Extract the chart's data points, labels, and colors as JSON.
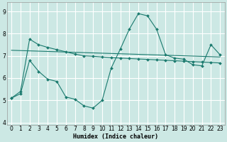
{
  "xlabel": "Humidex (Indice chaleur)",
  "bg_color": "#cce8e4",
  "line_color": "#1a7a6e",
  "grid_color": "#ffffff",
  "xlim": [
    -0.5,
    23.5
  ],
  "ylim": [
    3.9,
    9.4
  ],
  "yticks": [
    4,
    5,
    6,
    7,
    8,
    9
  ],
  "xticks": [
    0,
    1,
    2,
    3,
    4,
    5,
    6,
    7,
    8,
    9,
    10,
    11,
    12,
    13,
    14,
    15,
    16,
    17,
    18,
    19,
    20,
    21,
    22,
    23
  ],
  "line1_x": [
    0,
    1,
    2,
    3,
    4,
    5,
    6,
    7,
    8,
    9,
    10,
    11,
    12,
    13,
    14,
    15,
    16,
    17,
    18,
    19,
    20,
    21,
    22,
    23
  ],
  "line1_y": [
    5.1,
    5.4,
    7.75,
    7.5,
    7.38,
    7.28,
    7.18,
    7.08,
    7.0,
    6.98,
    6.95,
    6.92,
    6.9,
    6.88,
    6.86,
    6.84,
    6.82,
    6.8,
    6.78,
    6.76,
    6.74,
    6.72,
    6.7,
    6.68
  ],
  "line2_x": [
    0,
    1,
    2,
    3,
    4,
    5,
    6,
    7,
    8,
    9,
    10,
    11,
    12,
    13,
    14,
    15,
    16,
    17,
    18,
    19,
    20,
    21,
    22,
    23
  ],
  "line2_y": [
    5.1,
    5.3,
    6.8,
    6.3,
    5.95,
    5.85,
    5.15,
    5.05,
    4.75,
    4.65,
    5.0,
    6.45,
    7.3,
    8.2,
    8.9,
    8.8,
    8.2,
    7.05,
    6.9,
    6.85,
    6.6,
    6.55,
    7.5,
    7.05
  ],
  "line3_x": [
    0,
    23
  ],
  "line3_y": [
    7.25,
    6.95
  ]
}
